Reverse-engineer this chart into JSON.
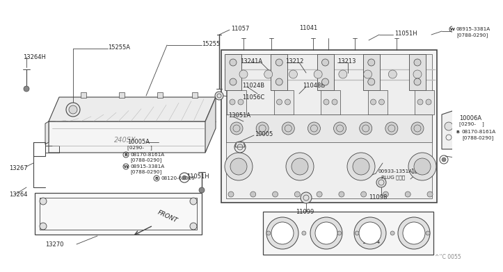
{
  "bg_color": "#ffffff",
  "line_color": "#444444",
  "text_color": "#222222",
  "watermark": "^''C 0055",
  "font_size_label": 6.0,
  "font_size_small": 5.2
}
